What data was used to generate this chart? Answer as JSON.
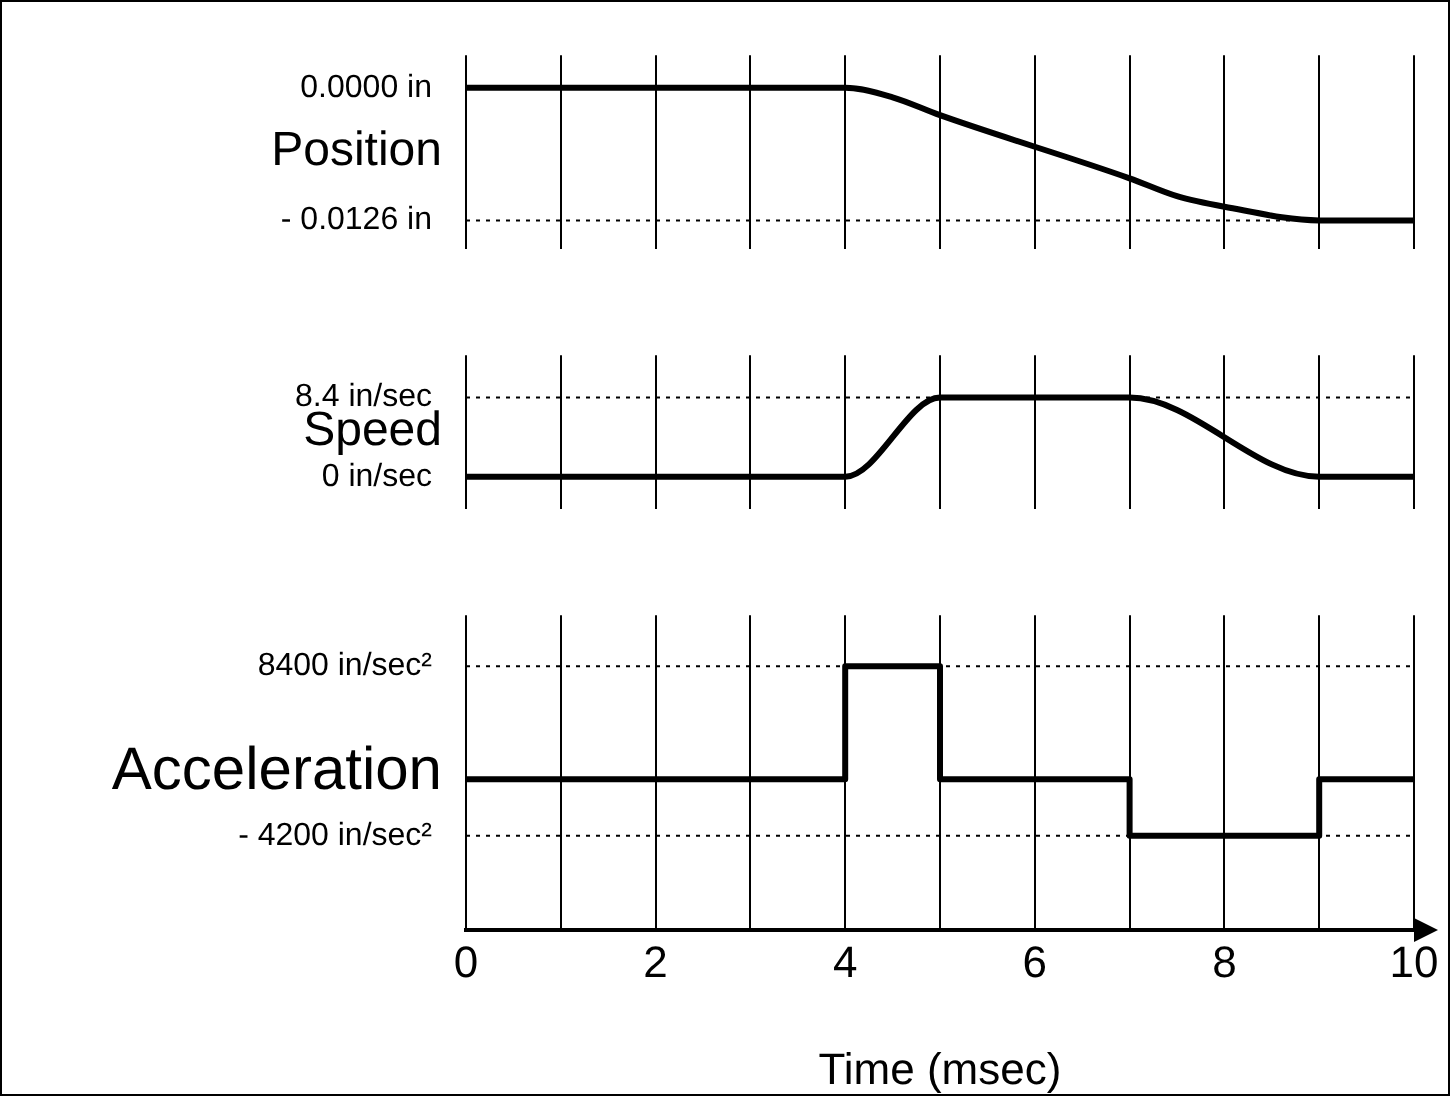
{
  "chart_data": [
    {
      "type": "line",
      "ylabel": "Position",
      "x": [
        0,
        4,
        4.5,
        5,
        7,
        7.5,
        8,
        9,
        10
      ],
      "values": [
        0,
        0,
        -0.0009,
        -0.0026,
        -0.0086,
        -0.0103,
        -0.0113,
        -0.0126,
        -0.0126
      ],
      "color": "#000000",
      "xlim": [
        0,
        10
      ],
      "xticks": [
        0,
        {
          "value": 1,
          "label": null
        },
        2,
        {
          "value": 3,
          "label": null
        },
        4,
        {
          "value": 5,
          "label": null
        },
        6,
        {
          "value": 7,
          "label": null
        },
        8,
        {
          "value": 9,
          "label": null
        },
        10
      ],
      "ylim": [
        -0.0153,
        0.0031
      ],
      "yticks": [
        {
          "value": 0,
          "label": "0.0000 in"
        },
        {
          "value": -0.0126,
          "label": "- 0.0126 in"
        }
      ],
      "grid": "x",
      "tick_labels": "y",
      "marker": "none",
      "ref_lines": [
        {
          "axis": "y",
          "value": -0.0126,
          "line_style": "dotted"
        }
      ]
    },
    {
      "type": "line",
      "ylabel": "Speed",
      "x": [
        0,
        4,
        5,
        7,
        9,
        10
      ],
      "values": [
        0,
        0,
        8.4,
        8.4,
        0,
        0
      ],
      "color": "#000000",
      "xlim": [
        0,
        10
      ],
      "xticks": [
        0,
        {
          "value": 1,
          "label": null
        },
        2,
        {
          "value": 3,
          "label": null
        },
        4,
        {
          "value": 5,
          "label": null
        },
        6,
        {
          "value": 7,
          "label": null
        },
        8,
        {
          "value": 9,
          "label": null
        },
        10
      ],
      "ylim": [
        -3.4,
        12.9
      ],
      "yticks": [
        {
          "value": 8.4,
          "label": "8.4 in/sec"
        },
        {
          "value": 0,
          "label": "0 in/sec"
        }
      ],
      "grid": "x",
      "tick_labels": "y",
      "marker": "none",
      "ref_lines": [
        {
          "axis": "y",
          "value": 8.4,
          "line_style": "dotted"
        }
      ]
    },
    {
      "type": "step",
      "ylabel": "Acceleration",
      "xlabel": "Time (msec)",
      "x": [
        0,
        4,
        5,
        7,
        9,
        10
      ],
      "values": [
        0,
        8400,
        0,
        -4200,
        0,
        0
      ],
      "color": "#000000",
      "xlim": [
        0,
        10
      ],
      "xticks": [
        0,
        {
          "value": 1,
          "label": null
        },
        2,
        {
          "value": 3,
          "label": null
        },
        4,
        {
          "value": 5,
          "label": null
        },
        6,
        {
          "value": 7,
          "label": null
        },
        8,
        {
          "value": 9,
          "label": null
        },
        10
      ],
      "ylim": [
        -11200,
        12200
      ],
      "yticks": [
        {
          "value": 8400,
          "label": "8400 in/sec²"
        },
        {
          "value": -4200,
          "label": "- 4200 in/sec²"
        }
      ],
      "grid": "x",
      "marker": "none",
      "ref_lines": [
        {
          "axis": "y",
          "value": 8400,
          "line_style": "dotted"
        },
        {
          "axis": "y",
          "value": -4200,
          "line_style": "dotted"
        }
      ]
    }
  ]
}
